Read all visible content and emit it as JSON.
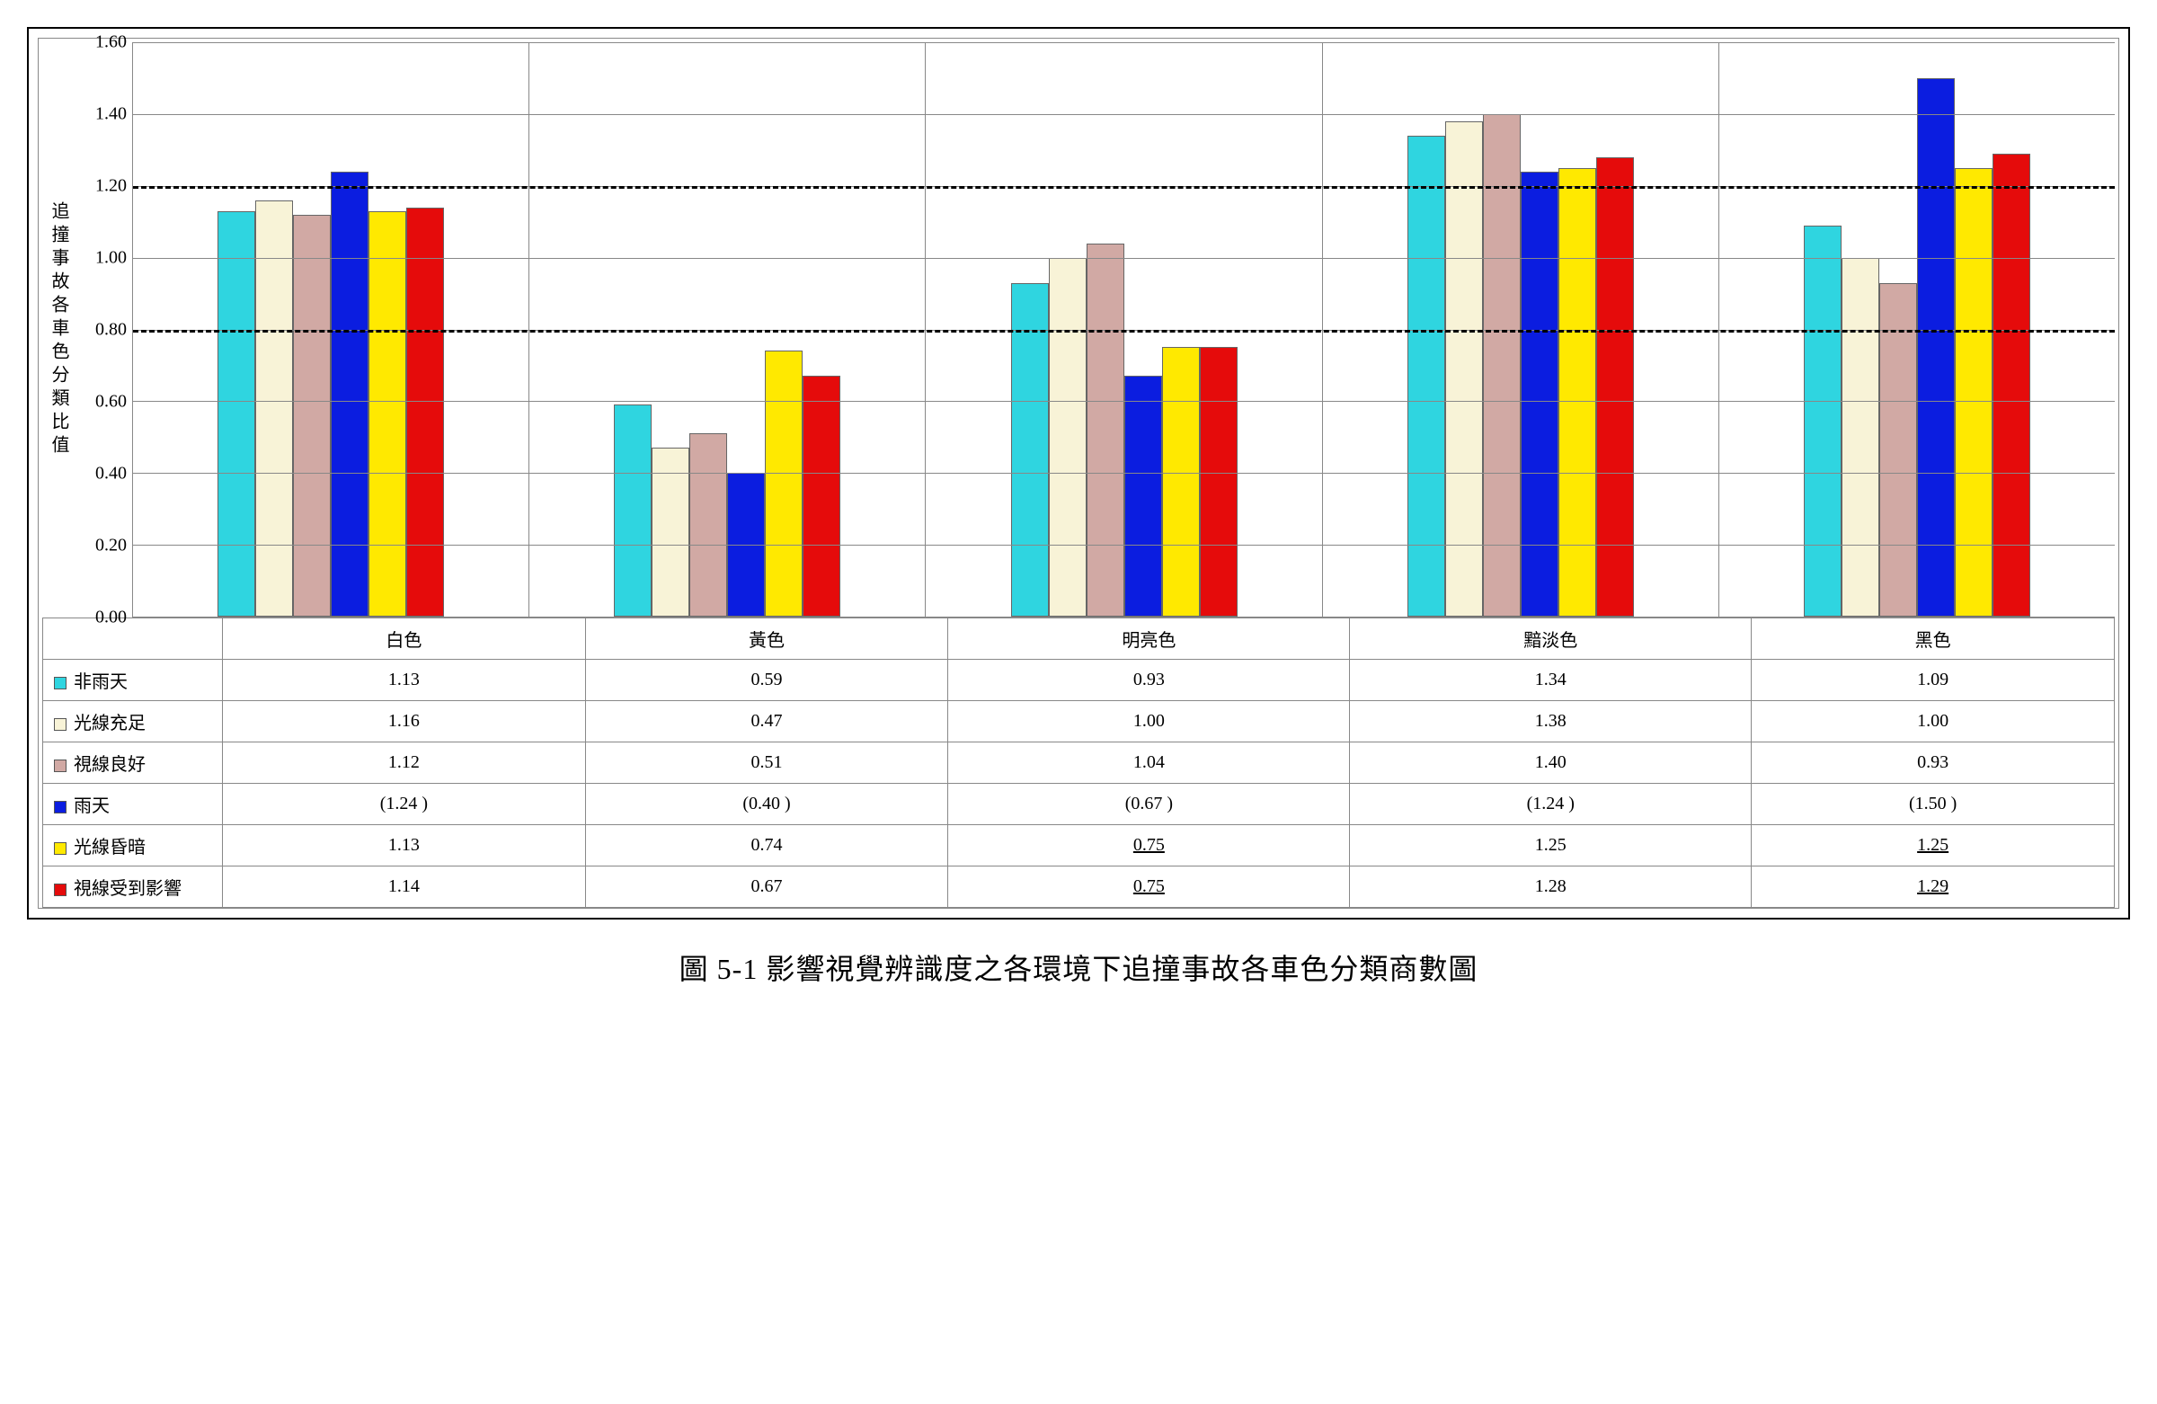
{
  "chart": {
    "type": "bar",
    "ylabel": "追撞事故各車色分類比值",
    "ylabel_fontsize": 20,
    "ylim_min": 0.0,
    "ylim_max": 1.6,
    "ytick_step": 0.2,
    "yticks": [
      "0.00",
      "0.20",
      "0.40",
      "0.60",
      "0.80",
      "1.00",
      "1.20",
      "1.40",
      "1.60"
    ],
    "reference_lines": [
      0.8,
      1.2
    ],
    "reference_line_style": "dashed",
    "reference_line_color": "#000000",
    "grid_color": "#888888",
    "background_color": "#ffffff",
    "bar_border_color": "#666666",
    "tick_fontsize": 20,
    "categories": [
      "白色",
      "黃色",
      "明亮色",
      "黯淡色",
      "黑色"
    ],
    "series": [
      {
        "name": "非雨天",
        "color": "#2fd5e0",
        "values": [
          1.13,
          0.59,
          0.93,
          1.34,
          1.09
        ]
      },
      {
        "name": "光線充足",
        "color": "#f8f3d7",
        "values": [
          1.16,
          0.47,
          1.0,
          1.38,
          1.0
        ]
      },
      {
        "name": "視線良好",
        "color": "#d1a9a4",
        "values": [
          1.12,
          0.51,
          1.04,
          1.4,
          0.93
        ]
      },
      {
        "name": "雨天",
        "color": "#0b1de0",
        "values": [
          1.24,
          0.4,
          0.67,
          1.24,
          1.5
        ]
      },
      {
        "name": "光線昏暗",
        "color": "#ffe900",
        "values": [
          1.13,
          0.74,
          0.75,
          1.25,
          1.25
        ]
      },
      {
        "name": "視線受到影響",
        "color": "#e50b0b",
        "values": [
          1.14,
          0.67,
          0.75,
          1.28,
          1.29
        ]
      }
    ],
    "table_display": [
      [
        "1.13",
        "0.59",
        "0.93",
        "1.34",
        "1.09"
      ],
      [
        "1.16",
        "0.47",
        "1.00",
        "1.38",
        "1.00"
      ],
      [
        "1.12",
        "0.51",
        "1.04",
        "1.40",
        "0.93"
      ],
      [
        "(1.24 )",
        "(0.40 )",
        "(0.67 )",
        "(1.24 )",
        "(1.50 )"
      ],
      [
        "1.13",
        "0.74",
        "0.75",
        "1.25",
        "1.25"
      ],
      [
        "1.14",
        "0.67",
        "0.75",
        "1.28",
        "1.29"
      ]
    ],
    "underline_cells": [
      [
        4,
        2
      ],
      [
        4,
        4
      ],
      [
        5,
        2
      ],
      [
        5,
        4
      ]
    ]
  },
  "caption": "圖 5-1 影響視覺辨識度之各環境下追撞事故各車色分類商數圖",
  "caption_fontsize": 32
}
